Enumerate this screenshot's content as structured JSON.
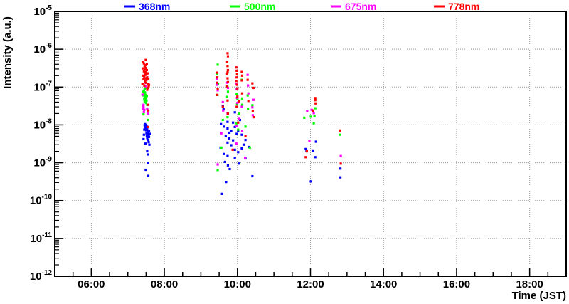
{
  "style": {
    "background": "#ffffff",
    "frame_color": "#000000",
    "grid_color": "#999999",
    "text_color": "#000000"
  },
  "chart_data": {
    "type": "scatter",
    "title": "",
    "xlabel": "Time (JST)",
    "ylabel": "Intensity (a.u.)",
    "x_axis": {
      "kind": "time-of-day",
      "min_hours": 5.0,
      "max_hours": 19.0,
      "major_ticks": [
        {
          "hours": 6,
          "label": "06:00"
        },
        {
          "hours": 8,
          "label": "08:00"
        },
        {
          "hours": 10,
          "label": "10:00"
        },
        {
          "hours": 12,
          "label": "12:00"
        },
        {
          "hours": 14,
          "label": "14:00"
        },
        {
          "hours": 16,
          "label": "16:00"
        },
        {
          "hours": 18,
          "label": "18:00"
        }
      ],
      "minor_tick_minutes": 30,
      "grid": "dotted"
    },
    "y_axis": {
      "scale": "log",
      "max_exp": -5,
      "min_exp": -12,
      "decade_exponents": [
        -5,
        -6,
        -7,
        -8,
        -9,
        -10,
        -11,
        -12
      ],
      "label_base": "10",
      "grid": "dotted"
    },
    "legend": {
      "position": "top",
      "entries": [
        {
          "label": "368nm",
          "color": "#0000ff"
        },
        {
          "label": "500nm",
          "color": "#00ff00"
        },
        {
          "label": "675nm",
          "color": "#ff00ff"
        },
        {
          "label": "778nm",
          "color": "#ff0000"
        }
      ]
    },
    "series": [
      {
        "name": "368nm",
        "color": "#0000ff",
        "marker": "filled-square",
        "points": [
          [
            7.44,
            5.5e-09
          ],
          [
            7.45,
            7.5e-09
          ],
          [
            7.46,
            9.8e-09
          ],
          [
            7.47,
            1.05e-08
          ],
          [
            7.48,
            8.5e-09
          ],
          [
            7.48,
            3.2e-09
          ],
          [
            7.49,
            9.5e-09
          ],
          [
            7.5,
            7.2e-09
          ],
          [
            7.5,
            1e-08
          ],
          [
            7.51,
            6e-09
          ],
          [
            7.51,
            8e-09
          ],
          [
            7.52,
            9e-09
          ],
          [
            7.52,
            5.2e-09
          ],
          [
            7.53,
            7.6e-09
          ],
          [
            7.53,
            4.5e-09
          ],
          [
            7.54,
            6.5e-09
          ],
          [
            7.54,
            8.8e-09
          ],
          [
            7.55,
            5.6e-09
          ],
          [
            7.55,
            7e-09
          ],
          [
            7.56,
            4e-09
          ],
          [
            7.56,
            6.2e-09
          ],
          [
            7.57,
            5e-09
          ],
          [
            7.57,
            3.5e-09
          ],
          [
            7.58,
            4.8e-09
          ],
          [
            7.58,
            6.8e-09
          ],
          [
            7.59,
            3e-09
          ],
          [
            7.6,
            5.8e-09
          ],
          [
            7.43,
            4.2e-09
          ],
          [
            7.53,
            2e-09
          ],
          [
            7.55,
            1.65e-09
          ],
          [
            7.55,
            1e-09
          ],
          [
            7.49,
            6.5e-10
          ],
          [
            7.56,
            4.5e-10
          ],
          [
            9.6,
            3.2e-08
          ],
          [
            9.62,
            2.6e-08
          ],
          [
            9.93,
            2.15e-08
          ],
          [
            9.55,
            1.05e-08
          ],
          [
            9.88,
            1.15e-08
          ],
          [
            10.07,
            1.35e-08
          ],
          [
            9.73,
            1.2e-08
          ],
          [
            9.63,
            9e-09
          ],
          [
            9.73,
            8e-09
          ],
          [
            9.83,
            7e-09
          ],
          [
            9.93,
            8.8e-09
          ],
          [
            10.02,
            6.8e-09
          ],
          [
            10.12,
            5.5e-09
          ],
          [
            9.68,
            5e-09
          ],
          [
            9.78,
            4.4e-09
          ],
          [
            9.78,
            6.2e-09
          ],
          [
            9.88,
            3.9e-09
          ],
          [
            9.98,
            5.8e-09
          ],
          [
            10.22,
            4e-09
          ],
          [
            10.32,
            2.6e-09
          ],
          [
            10.17,
            3e-09
          ],
          [
            9.54,
            2.5e-09
          ],
          [
            9.73,
            3.4e-09
          ],
          [
            9.83,
            2.9e-09
          ],
          [
            9.93,
            2.2e-09
          ],
          [
            10.12,
            2.4e-09
          ],
          [
            9.63,
            1.7e-09
          ],
          [
            9.73,
            1.5e-09
          ],
          [
            9.93,
            1.35e-09
          ],
          [
            10.22,
            1.3e-09
          ],
          [
            9.66,
            1.05e-09
          ],
          [
            9.74,
            8.5e-10
          ],
          [
            9.79,
            6.8e-10
          ],
          [
            10.41,
            4.4e-10
          ],
          [
            9.69,
            3.1e-10
          ],
          [
            9.58,
            1.5e-10
          ],
          [
            10.02,
            1.9e-09
          ],
          [
            10.05,
            9.5e-10
          ],
          [
            12.15,
            3.6e-09
          ],
          [
            11.87,
            2.3e-09
          ],
          [
            11.89,
            2.1e-09
          ],
          [
            12.07,
            2.1e-09
          ],
          [
            12.13,
            1.4e-09
          ],
          [
            12.01,
            3.2e-10
          ],
          [
            12.82,
            7e-10
          ],
          [
            12.82,
            4.1e-10
          ]
        ]
      },
      {
        "name": "500nm",
        "color": "#00ff00",
        "marker": "filled-square",
        "points": [
          [
            7.42,
            7.5e-08
          ],
          [
            7.43,
            6e-08
          ],
          [
            7.44,
            8e-08
          ],
          [
            7.45,
            5e-08
          ],
          [
            7.45,
            6.8e-08
          ],
          [
            7.46,
            4.2e-08
          ],
          [
            7.46,
            8.8e-08
          ],
          [
            7.47,
            5.6e-08
          ],
          [
            7.47,
            7.2e-08
          ],
          [
            7.48,
            4.6e-08
          ],
          [
            7.48,
            9.5e-08
          ],
          [
            7.49,
            6.2e-08
          ],
          [
            7.5,
            5.2e-08
          ],
          [
            7.5,
            3.8e-08
          ],
          [
            7.51,
            4.4e-08
          ],
          [
            7.52,
            5.8e-08
          ],
          [
            7.53,
            3.4e-08
          ],
          [
            7.43,
            1.9e-08
          ],
          [
            7.55,
            1.35e-08
          ],
          [
            7.56,
            2e-08
          ],
          [
            9.46,
            3.9e-07
          ],
          [
            9.44,
            2.2e-07
          ],
          [
            9.47,
            1.2e-07
          ],
          [
            9.45,
            6.2e-08
          ],
          [
            9.73,
            1e-07
          ],
          [
            9.74,
            7.5e-08
          ],
          [
            9.72,
            5.5e-08
          ],
          [
            9.73,
            1.6e-08
          ],
          [
            9.97,
            9e-08
          ],
          [
            9.98,
            6.5e-08
          ],
          [
            9.98,
            1.1e-08
          ],
          [
            10.0,
            4.8e-08
          ],
          [
            9.99,
            3.5e-08
          ],
          [
            10.12,
            1.55e-07
          ],
          [
            10.13,
            5e-08
          ],
          [
            10.13,
            3.4e-08
          ],
          [
            10.22,
            9e-09
          ],
          [
            10.28,
            6e-08
          ],
          [
            10.29,
            2.6e-08
          ],
          [
            10.41,
            3.3e-08
          ],
          [
            9.6,
            1.35e-08
          ],
          [
            10.05,
            2e-08
          ],
          [
            9.56,
            2.5e-09
          ],
          [
            10.34,
            2.5e-09
          ],
          [
            10.02,
            7.5e-09
          ],
          [
            9.46,
            6.4e-10
          ],
          [
            11.83,
            1.55e-08
          ],
          [
            12.01,
            1.65e-08
          ],
          [
            12.13,
            2.75e-08
          ],
          [
            12.11,
            1.7e-08
          ],
          [
            12.09,
            1.1e-08
          ],
          [
            12.81,
            5.5e-09
          ]
        ]
      },
      {
        "name": "675nm",
        "color": "#ff00ff",
        "marker": "filled-square",
        "points": [
          [
            7.41,
            3.2e-08
          ],
          [
            7.42,
            2.7e-08
          ],
          [
            7.43,
            2.9e-08
          ],
          [
            7.43,
            3.4e-08
          ],
          [
            7.44,
            2.2e-08
          ],
          [
            7.45,
            2.5e-08
          ],
          [
            7.53,
            2.6e-08
          ],
          [
            7.55,
            2e-08
          ],
          [
            7.44,
            1.6e-07
          ],
          [
            7.47,
            1.3e-07
          ],
          [
            7.49,
            1.05e-07
          ],
          [
            7.4,
            6.3e-08
          ],
          [
            9.44,
            1.6e-07
          ],
          [
            9.45,
            1.15e-07
          ],
          [
            9.46,
            8.2e-08
          ],
          [
            9.72,
            1.3e-07
          ],
          [
            9.74,
            9.5e-08
          ],
          [
            9.73,
            2e-08
          ],
          [
            9.97,
            1.2e-07
          ],
          [
            9.98,
            8.8e-08
          ],
          [
            9.98,
            9.5e-09
          ],
          [
            9.99,
            5.2e-08
          ],
          [
            10.0,
            3.8e-08
          ],
          [
            10.13,
            7e-09
          ],
          [
            10.28,
            2.1e-07
          ],
          [
            10.29,
            1.1e-07
          ],
          [
            10.3,
            6.8e-08
          ],
          [
            10.41,
            2.9e-08
          ],
          [
            10.42,
            1.8e-08
          ],
          [
            10.44,
            4.6e-08
          ],
          [
            9.56,
            6e-09
          ],
          [
            9.6,
            4e-08
          ],
          [
            9.61,
            2.4e-08
          ],
          [
            10.05,
            1.45e-08
          ],
          [
            10.12,
            3e-08
          ],
          [
            9.46,
            9e-10
          ],
          [
            10.21,
            1.35e-09
          ],
          [
            9.97,
            3.2e-09
          ],
          [
            11.91,
            2.3e-08
          ],
          [
            12.03,
            2.5e-08
          ],
          [
            12.09,
            2.05e-08
          ],
          [
            11.97,
            3.7e-09
          ],
          [
            12.83,
            1.5e-09
          ]
        ]
      },
      {
        "name": "778nm",
        "color": "#ff0000",
        "marker": "filled-square",
        "points": [
          [
            7.4,
            1.2e-07
          ],
          [
            7.41,
            2e-07
          ],
          [
            7.41,
            4.5e-07
          ],
          [
            7.42,
            3.1e-07
          ],
          [
            7.43,
            1.6e-07
          ],
          [
            7.44,
            2.6e-07
          ],
          [
            7.44,
            4.2e-07
          ],
          [
            7.45,
            1.1e-07
          ],
          [
            7.45,
            1.9e-07
          ],
          [
            7.46,
            3.5e-07
          ],
          [
            7.46,
            2.4e-07
          ],
          [
            7.47,
            1.4e-07
          ],
          [
            7.47,
            2.9e-07
          ],
          [
            7.48,
            2.1e-07
          ],
          [
            7.48,
            3.8e-07
          ],
          [
            7.49,
            1.7e-07
          ],
          [
            7.49,
            5.2e-07
          ],
          [
            7.49,
            2.5e-07
          ],
          [
            7.5,
            1.3e-07
          ],
          [
            7.5,
            3.2e-07
          ],
          [
            7.51,
            2.2e-07
          ],
          [
            7.51,
            1.55e-07
          ],
          [
            7.52,
            2.8e-07
          ],
          [
            7.52,
            4e-07
          ],
          [
            7.53,
            1.8e-07
          ],
          [
            7.54,
            2.3e-07
          ],
          [
            7.55,
            1.2e-07
          ],
          [
            7.55,
            9.5e-08
          ],
          [
            7.56,
            1.6e-07
          ],
          [
            7.57,
            1.05e-07
          ],
          [
            7.53,
            8.5e-08
          ],
          [
            7.58,
            1.15e-07
          ],
          [
            7.55,
            3.4e-08
          ],
          [
            7.56,
            2.4e-08
          ],
          [
            7.55,
            8.8e-09
          ],
          [
            9.73,
            7.8e-07
          ],
          [
            9.74,
            6.5e-07
          ],
          [
            9.72,
            4.6e-07
          ],
          [
            9.73,
            3.6e-07
          ],
          [
            9.74,
            2.8e-07
          ],
          [
            9.72,
            2.2e-07
          ],
          [
            9.73,
            1.7e-07
          ],
          [
            9.74,
            1.35e-07
          ],
          [
            9.72,
            1.05e-07
          ],
          [
            9.73,
            2.45e-07
          ],
          [
            9.73,
            4.4e-08
          ],
          [
            9.74,
            2e-08
          ],
          [
            9.97,
            3.3e-07
          ],
          [
            9.98,
            2.7e-07
          ],
          [
            9.99,
            2.2e-07
          ],
          [
            9.98,
            1.8e-07
          ],
          [
            9.97,
            1.45e-07
          ],
          [
            9.99,
            1.15e-07
          ],
          [
            10.0,
            9.2e-08
          ],
          [
            9.98,
            3e-08
          ],
          [
            10.12,
            2.5e-07
          ],
          [
            10.13,
            2e-07
          ],
          [
            10.12,
            1.5e-07
          ],
          [
            10.13,
            6.8e-08
          ],
          [
            10.22,
            5e-09
          ],
          [
            10.28,
            1.55e-07
          ],
          [
            10.41,
            1.25e-07
          ],
          [
            10.44,
            9.5e-08
          ],
          [
            9.44,
            2.4e-07
          ],
          [
            9.45,
            1.8e-07
          ],
          [
            9.44,
            1.3e-07
          ],
          [
            9.46,
            8.8e-08
          ],
          [
            9.45,
            6.2e-08
          ],
          [
            9.6,
            3e-08
          ],
          [
            10.0,
            5.6e-08
          ],
          [
            10.05,
            4.2e-08
          ],
          [
            10.3,
            4.3e-08
          ],
          [
            10.42,
            2.3e-08
          ],
          [
            9.87,
            2.2e-09
          ],
          [
            10.02,
            1.15e-08
          ],
          [
            10.46,
            1.6e-08
          ],
          [
            12.13,
            5.1e-08
          ],
          [
            12.13,
            4.5e-08
          ],
          [
            12.14,
            3.7e-08
          ],
          [
            12.06,
            2.4e-08
          ],
          [
            12.07,
            2.35e-08
          ],
          [
            11.9,
            2e-09
          ],
          [
            11.87,
            1.4e-09
          ],
          [
            12.81,
            7.1e-09
          ],
          [
            12.83,
            9.5e-10
          ]
        ]
      }
    ]
  }
}
